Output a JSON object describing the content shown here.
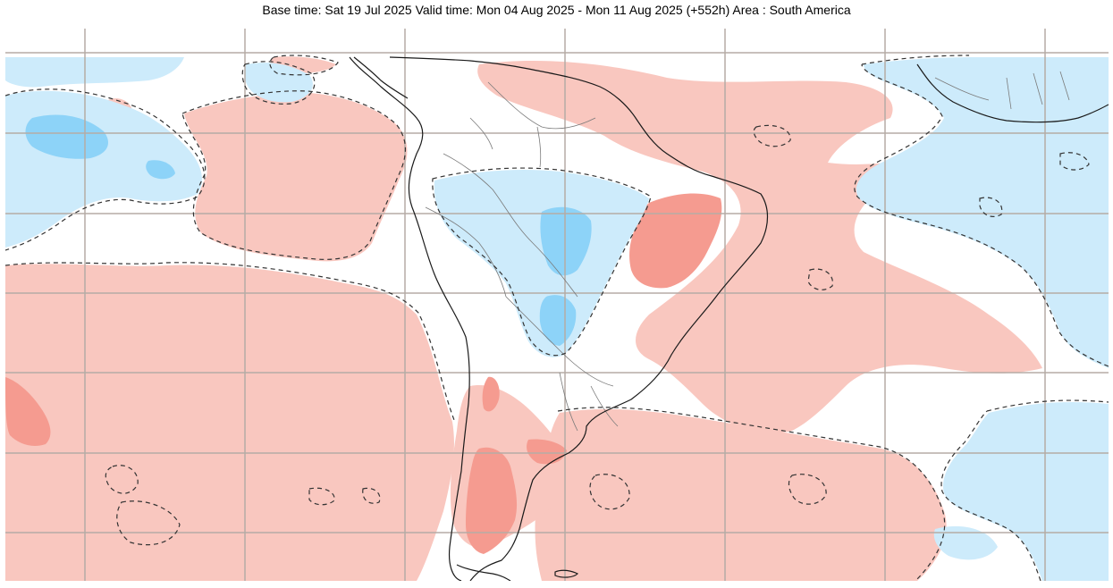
{
  "header": {
    "title": "Base time: Sat 19 Jul 2025 Valid time: Mon 04 Aug 2025 - Mon 11 Aug 2025 (+552h) Area : South America"
  },
  "map": {
    "area": "South America",
    "colors": {
      "background": "#ffffff",
      "positive_anomaly": "#f9c7bf",
      "strong_positive_anomaly": "#f59b90",
      "negative_anomaly": "#cdebfb",
      "strong_negative_anomaly": "#8dd3f8",
      "grid_line": "#b5aca5",
      "coastline": "#1a1a1a",
      "border": "#7a7a7a",
      "contour": "#333333"
    },
    "grid": true,
    "contour_style": "dashed"
  }
}
